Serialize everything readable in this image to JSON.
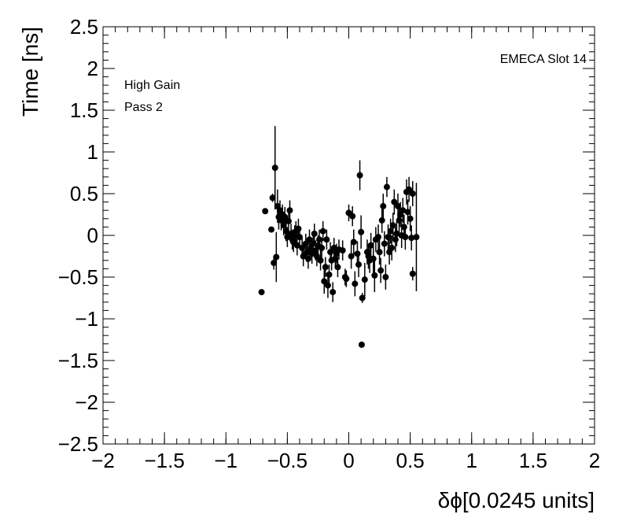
{
  "chart_data": {
    "type": "scatter",
    "title": "",
    "xlabel": "δϕ[0.0245 units]",
    "ylabel": "Time [ns]",
    "xlim": [
      -2,
      2
    ],
    "ylim": [
      -2.5,
      2.5
    ],
    "xticks": [
      "−2",
      "−1.5",
      "−1",
      "−0.5",
      "0",
      "0.5",
      "1",
      "1.5",
      "2"
    ],
    "yticks": [
      "−2.5",
      "−2",
      "−1.5",
      "−1",
      "−0.5",
      "0",
      "0.5",
      "1",
      "1.5",
      "2",
      "2.5"
    ],
    "grid": false,
    "legend": "none",
    "marker_color": "#000000",
    "annotations": {
      "top_right": "EMECA Slot 14",
      "line1": "High Gain",
      "line2": "Pass 2"
    },
    "points": [
      {
        "x": -0.71,
        "y": -0.68,
        "err": 0.0
      },
      {
        "x": -0.68,
        "y": 0.29,
        "err": 0.0
      },
      {
        "x": -0.63,
        "y": 0.07,
        "err": 0.0
      },
      {
        "x": -0.62,
        "y": 0.45,
        "err": 0.05
      },
      {
        "x": -0.61,
        "y": -0.33,
        "err": 0.08
      },
      {
        "x": -0.6,
        "y": 0.81,
        "err": 0.5
      },
      {
        "x": -0.59,
        "y": -0.26,
        "err": 0.3
      },
      {
        "x": -0.58,
        "y": 0.35,
        "err": 0.2
      },
      {
        "x": -0.57,
        "y": 0.22,
        "err": 0.15
      },
      {
        "x": -0.56,
        "y": 0.3,
        "err": 0.12
      },
      {
        "x": -0.55,
        "y": 0.18,
        "err": 0.12
      },
      {
        "x": -0.54,
        "y": 0.25,
        "err": 0.12
      },
      {
        "x": -0.53,
        "y": 0.12,
        "err": 0.12
      },
      {
        "x": -0.52,
        "y": 0.22,
        "err": 0.12
      },
      {
        "x": -0.51,
        "y": 0.05,
        "err": 0.12
      },
      {
        "x": -0.5,
        "y": -0.02,
        "err": 0.12
      },
      {
        "x": -0.49,
        "y": 0.17,
        "err": 0.12
      },
      {
        "x": -0.48,
        "y": 0.3,
        "err": 0.12
      },
      {
        "x": -0.47,
        "y": 0.02,
        "err": 0.12
      },
      {
        "x": -0.46,
        "y": -0.05,
        "err": 0.12
      },
      {
        "x": -0.45,
        "y": -0.08,
        "err": 0.12
      },
      {
        "x": -0.44,
        "y": 0.0,
        "err": 0.12
      },
      {
        "x": -0.43,
        "y": 0.05,
        "err": 0.12
      },
      {
        "x": -0.42,
        "y": -0.12,
        "err": 0.12
      },
      {
        "x": -0.41,
        "y": 0.08,
        "err": 0.12
      },
      {
        "x": -0.4,
        "y": -0.02,
        "err": 0.12
      },
      {
        "x": -0.38,
        "y": -0.15,
        "err": 0.12
      },
      {
        "x": -0.37,
        "y": -0.25,
        "err": 0.12
      },
      {
        "x": -0.35,
        "y": -0.1,
        "err": 0.12
      },
      {
        "x": -0.34,
        "y": -0.2,
        "err": 0.12
      },
      {
        "x": -0.33,
        "y": -0.28,
        "err": 0.12
      },
      {
        "x": -0.32,
        "y": -0.05,
        "err": 0.12
      },
      {
        "x": -0.31,
        "y": -0.15,
        "err": 0.12
      },
      {
        "x": -0.3,
        "y": -0.22,
        "err": 0.12
      },
      {
        "x": -0.29,
        "y": -0.1,
        "err": 0.12
      },
      {
        "x": -0.28,
        "y": 0.02,
        "err": 0.12
      },
      {
        "x": -0.27,
        "y": -0.18,
        "err": 0.12
      },
      {
        "x": -0.26,
        "y": -0.25,
        "err": 0.12
      },
      {
        "x": -0.25,
        "y": -0.12,
        "err": 0.12
      },
      {
        "x": -0.24,
        "y": -0.05,
        "err": 0.12
      },
      {
        "x": -0.23,
        "y": -0.3,
        "err": 0.12
      },
      {
        "x": -0.22,
        "y": -0.15,
        "err": 0.12
      },
      {
        "x": -0.21,
        "y": 0.05,
        "err": 0.12
      },
      {
        "x": -0.2,
        "y": -0.55,
        "err": 0.15
      },
      {
        "x": -0.19,
        "y": -0.38,
        "err": 0.12
      },
      {
        "x": -0.18,
        "y": -0.05,
        "err": 0.12
      },
      {
        "x": -0.17,
        "y": -0.6,
        "err": 0.15
      },
      {
        "x": -0.16,
        "y": -0.47,
        "err": 0.12
      },
      {
        "x": -0.15,
        "y": -0.2,
        "err": 0.12
      },
      {
        "x": -0.14,
        "y": -0.3,
        "err": 0.12
      },
      {
        "x": -0.13,
        "y": -0.68,
        "err": 0.12
      },
      {
        "x": -0.12,
        "y": -0.15,
        "err": 0.12
      },
      {
        "x": -0.11,
        "y": -0.28,
        "err": 0.12
      },
      {
        "x": -0.1,
        "y": -0.22,
        "err": 0.12
      },
      {
        "x": -0.09,
        "y": -0.38,
        "err": 0.12
      },
      {
        "x": -0.08,
        "y": -0.17,
        "err": 0.12
      },
      {
        "x": -0.05,
        "y": -0.18,
        "err": 0.12
      },
      {
        "x": -0.03,
        "y": -0.5,
        "err": 0.1
      },
      {
        "x": -0.02,
        "y": -0.52,
        "err": 0.1
      },
      {
        "x": 0.0,
        "y": 0.27,
        "err": 0.1
      },
      {
        "x": 0.02,
        "y": -0.25,
        "err": 0.15
      },
      {
        "x": 0.03,
        "y": 0.23,
        "err": 0.12
      },
      {
        "x": 0.04,
        "y": -0.08,
        "err": 0.15
      },
      {
        "x": 0.05,
        "y": -0.58,
        "err": 0.15
      },
      {
        "x": 0.07,
        "y": -0.22,
        "err": 0.15
      },
      {
        "x": 0.08,
        "y": -0.35,
        "err": 0.15
      },
      {
        "x": 0.09,
        "y": 0.72,
        "err": 0.18
      },
      {
        "x": 0.1,
        "y": 0.04,
        "err": 0.2
      },
      {
        "x": 0.11,
        "y": -0.75,
        "err": 0.06
      },
      {
        "x": 0.105,
        "y": -1.31,
        "err": 0.0
      },
      {
        "x": 0.13,
        "y": -0.53,
        "err": 0.2
      },
      {
        "x": 0.15,
        "y": -0.2,
        "err": 0.15
      },
      {
        "x": 0.16,
        "y": -0.25,
        "err": 0.15
      },
      {
        "x": 0.17,
        "y": -0.3,
        "err": 0.15
      },
      {
        "x": 0.18,
        "y": -0.12,
        "err": 0.15
      },
      {
        "x": 0.2,
        "y": -0.28,
        "err": 0.2
      },
      {
        "x": 0.21,
        "y": -0.48,
        "err": 0.2
      },
      {
        "x": 0.22,
        "y": -0.05,
        "err": 0.15
      },
      {
        "x": 0.24,
        "y": -0.02,
        "err": 0.15
      },
      {
        "x": 0.25,
        "y": -0.2,
        "err": 0.15
      },
      {
        "x": 0.26,
        "y": -0.42,
        "err": 0.15
      },
      {
        "x": 0.27,
        "y": 0.18,
        "err": 0.15
      },
      {
        "x": 0.28,
        "y": 0.35,
        "err": 0.15
      },
      {
        "x": 0.29,
        "y": -0.1,
        "err": 0.15
      },
      {
        "x": 0.3,
        "y": -0.5,
        "err": 0.15
      },
      {
        "x": 0.31,
        "y": 0.58,
        "err": 0.12
      },
      {
        "x": 0.32,
        "y": -0.02,
        "err": 0.15
      },
      {
        "x": 0.33,
        "y": -0.2,
        "err": 0.15
      },
      {
        "x": 0.34,
        "y": 0.05,
        "err": 0.15
      },
      {
        "x": 0.35,
        "y": -0.15,
        "err": 0.15
      },
      {
        "x": 0.36,
        "y": 0.12,
        "err": 0.15
      },
      {
        "x": 0.37,
        "y": 0.4,
        "err": 0.15
      },
      {
        "x": 0.38,
        "y": -0.05,
        "err": 0.15
      },
      {
        "x": 0.39,
        "y": 0.02,
        "err": 0.15
      },
      {
        "x": 0.4,
        "y": 0.35,
        "err": 0.15
      },
      {
        "x": 0.41,
        "y": 0.18,
        "err": 0.15
      },
      {
        "x": 0.42,
        "y": 0.25,
        "err": 0.15
      },
      {
        "x": 0.43,
        "y": 0.0,
        "err": 0.15
      },
      {
        "x": 0.44,
        "y": 0.3,
        "err": 0.15
      },
      {
        "x": 0.45,
        "y": 0.1,
        "err": 0.15
      },
      {
        "x": 0.46,
        "y": -0.02,
        "err": 0.15
      },
      {
        "x": 0.47,
        "y": 0.52,
        "err": 0.15
      },
      {
        "x": 0.48,
        "y": 0.28,
        "err": 0.15
      },
      {
        "x": 0.49,
        "y": 0.55,
        "err": 0.15
      },
      {
        "x": 0.5,
        "y": 0.2,
        "err": 0.15
      },
      {
        "x": 0.51,
        "y": -0.03,
        "err": 0.15
      },
      {
        "x": 0.52,
        "y": 0.5,
        "err": 0.15
      },
      {
        "x": 0.52,
        "y": -0.46,
        "err": 0.08
      },
      {
        "x": 0.55,
        "y": -0.02,
        "err": 0.65
      }
    ]
  }
}
